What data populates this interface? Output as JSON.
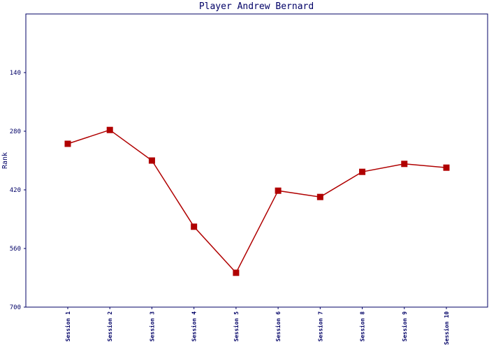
{
  "chart_data": {
    "type": "line",
    "title": "Player Andrew Bernard",
    "y_label": "Rank",
    "categories": [
      "Session 1",
      "Session 2",
      "Session 3",
      "Session 4",
      "Session 5",
      "Session 6",
      "Session 7",
      "Session 8",
      "Session 9",
      "Session 10"
    ],
    "series": [
      {
        "name": "Rank",
        "color": "#b00000",
        "values": [
          310,
          277,
          350,
          508,
          618,
          422,
          437,
          377,
          358,
          367
        ]
      }
    ],
    "ylim": [
      700,
      0
    ],
    "yticks": [
      140,
      280,
      420,
      560,
      700
    ],
    "grid": false
  }
}
